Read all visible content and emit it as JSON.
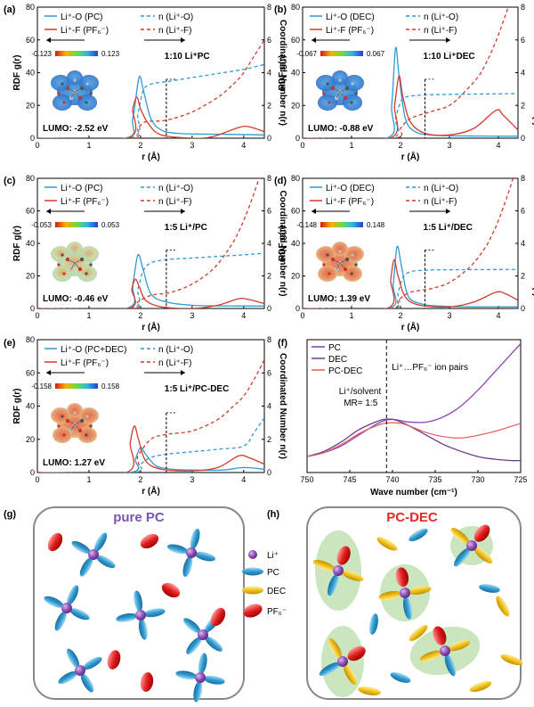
{
  "colors": {
    "blue": "#2f9bd0",
    "red": "#d23b2e",
    "purple": "#8a48b0",
    "lightred": "#e35a5a",
    "axis": "#000000"
  },
  "chart_data": [
    {
      "panel": "(a)",
      "type": "line",
      "xlabel": "r (Å)",
      "ylabel": "RDF g(r)",
      "y2label": "Coordinated Number n(r)",
      "xlim": [
        0,
        4.4
      ],
      "ylim": [
        0,
        80
      ],
      "y2lim": [
        0,
        8
      ],
      "xticks": [
        "0",
        "1",
        "2",
        "3",
        "4"
      ],
      "yticks": [
        "0",
        "20",
        "40",
        "60",
        "80"
      ],
      "y2ticks": [
        "0",
        "2",
        "4",
        "6",
        "8"
      ],
      "legend": [
        "Li⁺-O (PC)",
        "Li⁺-F (PF₆⁻)",
        "n (Li⁺-O)",
        "n (Li⁺-F)"
      ],
      "label": "1:10 Li⁺PC",
      "esp_min": "-0.123",
      "esp_max": "0.123",
      "lumo": "LUMO: -2.52 eV",
      "series": [
        {
          "name": "g Li-O",
          "x": [
            0,
            1.7,
            1.85,
            1.97,
            2.05,
            2.2,
            2.4,
            2.7,
            3.2,
            3.8,
            4.4
          ],
          "y": [
            0,
            0,
            12,
            37,
            30,
            12,
            5,
            3,
            2.5,
            2.3,
            2
          ]
        },
        {
          "name": "g Li-F",
          "x": [
            0,
            1.75,
            1.85,
            1.93,
            2.0,
            2.15,
            2.4,
            3.0,
            3.4,
            3.9,
            4.1,
            4.4
          ],
          "y": [
            0,
            0,
            18,
            25,
            18,
            9,
            2,
            0,
            1,
            6.5,
            7,
            4
          ]
        },
        {
          "name": "n Li-O",
          "x": [
            0,
            1.8,
            1.95,
            2.05,
            2.2,
            2.5,
            3.0,
            3.5,
            4.0,
            4.4
          ],
          "y": [
            0,
            0,
            1.5,
            2.9,
            3.3,
            3.45,
            3.7,
            3.95,
            4.2,
            4.5
          ]
        },
        {
          "name": "n Li-F",
          "x": [
            0,
            1.8,
            1.95,
            2.1,
            2.5,
            3.0,
            3.5,
            3.8,
            4.0,
            4.2,
            4.4
          ],
          "y": [
            0,
            0,
            0.6,
            1.0,
            1.1,
            1.6,
            2.5,
            3.3,
            4.0,
            5.0,
            6.0
          ]
        }
      ]
    },
    {
      "panel": "(b)",
      "type": "line",
      "xlabel": "r (Å)",
      "ylabel": "RDF g(r)",
      "y2label": "Coordinated Number n(r)",
      "xlim": [
        0,
        4.4
      ],
      "ylim": [
        0,
        80
      ],
      "y2lim": [
        0,
        8
      ],
      "xticks": [
        "0",
        "1",
        "2",
        "3",
        "4"
      ],
      "yticks": [
        "0",
        "20",
        "40",
        "60",
        "80"
      ],
      "y2ticks": [
        "0",
        "2",
        "4",
        "6",
        "8"
      ],
      "legend": [
        "Li⁺-O (DEC)",
        "Li⁺-F (PF₆⁻)",
        "n (Li⁺-O)",
        "n (Li⁺-F)"
      ],
      "label": "1:10 Li⁺DEC",
      "esp_min": "-0.067",
      "esp_max": "0.067",
      "lumo": "LUMO: -0.88 eV",
      "series": [
        {
          "name": "g Li-O",
          "x": [
            0,
            1.72,
            1.82,
            1.9,
            1.97,
            2.1,
            2.3,
            2.6,
            3.0,
            3.6,
            4.4
          ],
          "y": [
            0,
            0,
            20,
            55,
            38,
            12,
            4,
            2,
            1.5,
            1.3,
            1.2
          ]
        },
        {
          "name": "g Li-F",
          "x": [
            0,
            1.78,
            1.88,
            1.97,
            2.05,
            2.2,
            2.5,
            3.0,
            3.5,
            3.95,
            4.1,
            4.4
          ],
          "y": [
            0,
            0,
            20,
            38,
            25,
            10,
            3,
            2,
            6,
            17,
            14,
            5
          ]
        },
        {
          "name": "n Li-O",
          "x": [
            0,
            1.8,
            1.9,
            2.0,
            2.1,
            2.3,
            2.6,
            3.2,
            4.4
          ],
          "y": [
            0,
            0,
            1.2,
            2.2,
            2.5,
            2.6,
            2.65,
            2.68,
            2.72
          ]
        },
        {
          "name": "n Li-F",
          "x": [
            0,
            1.85,
            2.0,
            2.2,
            2.6,
            3.0,
            3.3,
            3.6,
            3.8,
            4.0,
            4.2
          ],
          "y": [
            0,
            0,
            0.6,
            1.2,
            1.6,
            2.0,
            2.8,
            3.8,
            4.9,
            6.3,
            8.0
          ]
        }
      ]
    },
    {
      "panel": "(c)",
      "type": "line",
      "xlabel": "r (Å)",
      "ylabel": "RDF g(r)",
      "y2label": "Coordinated Number n(r)",
      "xlim": [
        0,
        4.4
      ],
      "ylim": [
        0,
        80
      ],
      "y2lim": [
        0,
        8
      ],
      "xticks": [
        "0",
        "1",
        "2",
        "3",
        "4"
      ],
      "yticks": [
        "0",
        "20",
        "40",
        "60",
        "80"
      ],
      "y2ticks": [
        "0",
        "2",
        "4",
        "6",
        "8"
      ],
      "legend": [
        "Li⁺-O (PC)",
        "Li⁺-F (PF₆⁻)",
        "n (Li⁺-O)",
        "n (Li⁺-F)"
      ],
      "label": "1:5 Li⁺/PC",
      "esp_min": "-0.053",
      "esp_max": "0.053",
      "lumo": "LUMO: -0.46 eV",
      "series": [
        {
          "name": "g Li-O",
          "x": [
            0,
            1.72,
            1.85,
            1.95,
            2.05,
            2.2,
            2.5,
            3.0,
            3.6,
            4.4
          ],
          "y": [
            0,
            0,
            15,
            33,
            24,
            9,
            4,
            2,
            1.6,
            1.5
          ]
        },
        {
          "name": "g Li-F",
          "x": [
            0,
            1.75,
            1.83,
            1.9,
            1.98,
            2.1,
            2.4,
            3.0,
            3.5,
            3.9,
            4.1,
            4.4
          ],
          "y": [
            0,
            0,
            12,
            18,
            13,
            5,
            1,
            0,
            2,
            6,
            5.5,
            3
          ]
        },
        {
          "name": "n Li-O",
          "x": [
            0,
            1.8,
            1.95,
            2.05,
            2.2,
            2.5,
            3.0,
            3.5,
            4.0,
            4.4
          ],
          "y": [
            0,
            0,
            1.2,
            2.3,
            2.8,
            3.0,
            3.1,
            3.2,
            3.3,
            3.4
          ]
        },
        {
          "name": "n Li-F",
          "x": [
            0,
            1.8,
            1.95,
            2.2,
            2.6,
            3.0,
            3.4,
            3.7,
            3.9,
            4.1,
            4.3
          ],
          "y": [
            0,
            0,
            0.4,
            0.8,
            1.0,
            1.5,
            2.4,
            3.6,
            4.7,
            6.2,
            8.0
          ]
        }
      ]
    },
    {
      "panel": "(d)",
      "type": "line",
      "xlabel": "r (Å)",
      "ylabel": "RDF g(r)",
      "y2label": "Coordinated Number n(r)",
      "xlim": [
        0,
        4.4
      ],
      "ylim": [
        0,
        80
      ],
      "y2lim": [
        0,
        8
      ],
      "xticks": [
        "0",
        "1",
        "2",
        "3",
        "4"
      ],
      "yticks": [
        "0",
        "20",
        "40",
        "60",
        "80"
      ],
      "y2ticks": [
        "0",
        "2",
        "4",
        "6",
        "8"
      ],
      "legend": [
        "Li⁺-O (DEC)",
        "Li⁺-F (PF₆⁻)",
        "n (Li⁺-O)",
        "n (Li⁺-F)"
      ],
      "label": "1:5 Li⁺/DEC",
      "esp_min": "-0.148",
      "esp_max": "0.148",
      "lumo": "LUMO: 1.39 eV",
      "series": [
        {
          "name": "g Li-O",
          "x": [
            0,
            1.75,
            1.85,
            1.93,
            2.02,
            2.15,
            2.4,
            2.8,
            3.4,
            4.4
          ],
          "y": [
            0,
            0,
            15,
            38,
            26,
            8,
            3,
            1.5,
            1,
            1
          ]
        },
        {
          "name": "g Li-F",
          "x": [
            0,
            1.72,
            1.8,
            1.87,
            1.95,
            2.1,
            2.4,
            3.0,
            3.5,
            3.95,
            4.15,
            4.4
          ],
          "y": [
            0,
            0,
            18,
            30,
            20,
            7,
            2,
            1,
            4,
            10,
            9,
            5
          ]
        },
        {
          "name": "n Li-O",
          "x": [
            0,
            1.8,
            1.95,
            2.05,
            2.2,
            2.5,
            3.0,
            4.4
          ],
          "y": [
            0,
            0,
            1.0,
            1.9,
            2.25,
            2.35,
            2.38,
            2.4
          ]
        },
        {
          "name": "n Li-F",
          "x": [
            0,
            1.8,
            1.95,
            2.2,
            2.6,
            3.0,
            3.4,
            3.7,
            3.9,
            4.1,
            4.3
          ],
          "y": [
            0,
            0,
            0.5,
            1.0,
            1.2,
            1.6,
            2.5,
            3.6,
            4.7,
            6.2,
            8.0
          ]
        }
      ]
    },
    {
      "panel": "(e)",
      "type": "line",
      "xlabel": "r (Å)",
      "ylabel": "RDF g(r)",
      "y2label": "Coordinated Number n(r)",
      "xlim": [
        0,
        4.4
      ],
      "ylim": [
        0,
        80
      ],
      "y2lim": [
        0,
        8
      ],
      "xticks": [
        "0",
        "1",
        "2",
        "3",
        "4"
      ],
      "yticks": [
        "0",
        "20",
        "40",
        "60",
        "80"
      ],
      "y2ticks": [
        "0",
        "2",
        "4",
        "6",
        "8"
      ],
      "legend": [
        "Li⁺-O (PC+DEC)",
        "Li⁺-F (PF₆⁻)",
        "n (Li⁺-O)",
        "n (Li⁺-F)"
      ],
      "label": "1:5 Li⁺/PC-DEC",
      "esp_min": "-0.158",
      "esp_max": "0.158",
      "lumo": "LUMO: 1.27 eV",
      "series": [
        {
          "name": "g Li-O",
          "x": [
            0,
            1.8,
            1.9,
            2.0,
            2.1,
            2.3,
            2.6,
            3.0,
            3.6,
            4.0,
            4.4
          ],
          "y": [
            0,
            0,
            8,
            15,
            11,
            4,
            2,
            1.5,
            1.5,
            3,
            2
          ]
        },
        {
          "name": "g Li-F",
          "x": [
            0,
            1.72,
            1.8,
            1.88,
            1.96,
            2.1,
            2.4,
            3.0,
            3.5,
            3.9,
            4.1,
            4.4
          ],
          "y": [
            0,
            0,
            18,
            28,
            20,
            7,
            2,
            1,
            3,
            10,
            9,
            5
          ]
        },
        {
          "name": "n Li-O",
          "x": [
            0,
            1.85,
            2.0,
            2.2,
            2.5,
            3.0,
            3.5,
            4.0,
            4.2,
            4.4
          ],
          "y": [
            0,
            0,
            0.5,
            0.9,
            1.1,
            1.25,
            1.4,
            1.6,
            2.4,
            3.3
          ]
        },
        {
          "name": "n Li-F",
          "x": [
            0,
            1.8,
            1.95,
            2.2,
            2.5,
            3.0,
            3.5,
            3.8,
            4.0,
            4.2,
            4.4
          ],
          "y": [
            0,
            0,
            1.0,
            2.0,
            2.3,
            2.5,
            3.2,
            4.0,
            4.6,
            5.6,
            6.8
          ]
        }
      ]
    },
    {
      "panel": "(f)",
      "type": "line",
      "xlabel": "Wave number (cm⁻¹)",
      "xlim": [
        750,
        725
      ],
      "xticks": [
        "750",
        "745",
        "740",
        "735",
        "730",
        "725"
      ],
      "legend": [
        "PC",
        "DEC",
        "PC-DEC"
      ],
      "annotation_ion": "Li⁺…PF₆⁻ ion pairs",
      "annotation_ratio_1": "Li⁺/solvent",
      "annotation_ratio_2": "MR= 1:5",
      "dashed_line_x": 740.7,
      "series": [
        {
          "name": "PC",
          "x": [
            750,
            748,
            746,
            744,
            742,
            741,
            740,
            739,
            738,
            736,
            734,
            732,
            730,
            728,
            726,
            725
          ],
          "y": [
            0.12,
            0.15,
            0.2,
            0.28,
            0.36,
            0.39,
            0.4,
            0.39,
            0.38,
            0.38,
            0.42,
            0.5,
            0.62,
            0.76,
            0.9,
            0.97
          ]
        },
        {
          "name": "DEC",
          "x": [
            750,
            748,
            746,
            744,
            742,
            741,
            740,
            739,
            738,
            736,
            734,
            732,
            730,
            728,
            726,
            725
          ],
          "y": [
            0.12,
            0.16,
            0.23,
            0.32,
            0.38,
            0.4,
            0.4,
            0.38,
            0.35,
            0.28,
            0.21,
            0.16,
            0.12,
            0.1,
            0.09,
            0.09
          ]
        },
        {
          "name": "PC-DEC",
          "x": [
            750,
            748,
            746,
            744,
            742,
            741,
            740,
            739,
            738,
            736,
            734,
            732,
            730,
            728,
            726,
            725
          ],
          "y": [
            0.12,
            0.15,
            0.21,
            0.29,
            0.35,
            0.37,
            0.375,
            0.37,
            0.35,
            0.3,
            0.27,
            0.26,
            0.28,
            0.31,
            0.35,
            0.37
          ]
        }
      ]
    }
  ],
  "schematic": {
    "g": {
      "panel": "(g)",
      "title": "pure PC"
    },
    "h": {
      "panel": "(h)",
      "title": "PC-DEC"
    },
    "legend": [
      "Li⁺",
      "PC",
      "DEC",
      "PF₆⁻"
    ]
  }
}
